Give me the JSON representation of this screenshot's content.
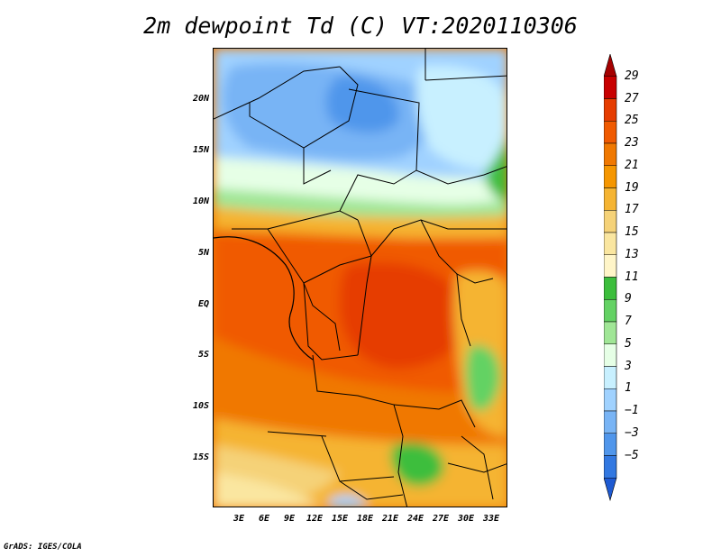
{
  "title": "2m dewpoint Td (C) VT:2020110306",
  "credit": "GrADS: IGES/COLA",
  "map": {
    "lat_labels": [
      "20N",
      "15N",
      "10N",
      "5N",
      "EQ",
      "5S",
      "10S",
      "15S"
    ],
    "lon_labels": [
      "3E",
      "6E",
      "9E",
      "12E",
      "15E",
      "18E",
      "21E",
      "24E",
      "27E",
      "30E",
      "33E"
    ]
  },
  "colorbar": {
    "labels": [
      "29",
      "27",
      "25",
      "23",
      "21",
      "19",
      "17",
      "15",
      "13",
      "11",
      "9",
      "7",
      "5",
      "3",
      "1",
      "−1",
      "−3",
      "−5"
    ],
    "colors": [
      "#a50000",
      "#c80000",
      "#e63c00",
      "#f05a00",
      "#f07800",
      "#f59600",
      "#f5b432",
      "#f5d278",
      "#fae6a0",
      "#fff5c8",
      "#3cbe3c",
      "#64d264",
      "#a0e696",
      "#e6ffe6",
      "#c8f0ff",
      "#a0d2ff",
      "#78b4f5",
      "#5096eb",
      "#3278e1",
      "#1e5ad2"
    ]
  }
}
